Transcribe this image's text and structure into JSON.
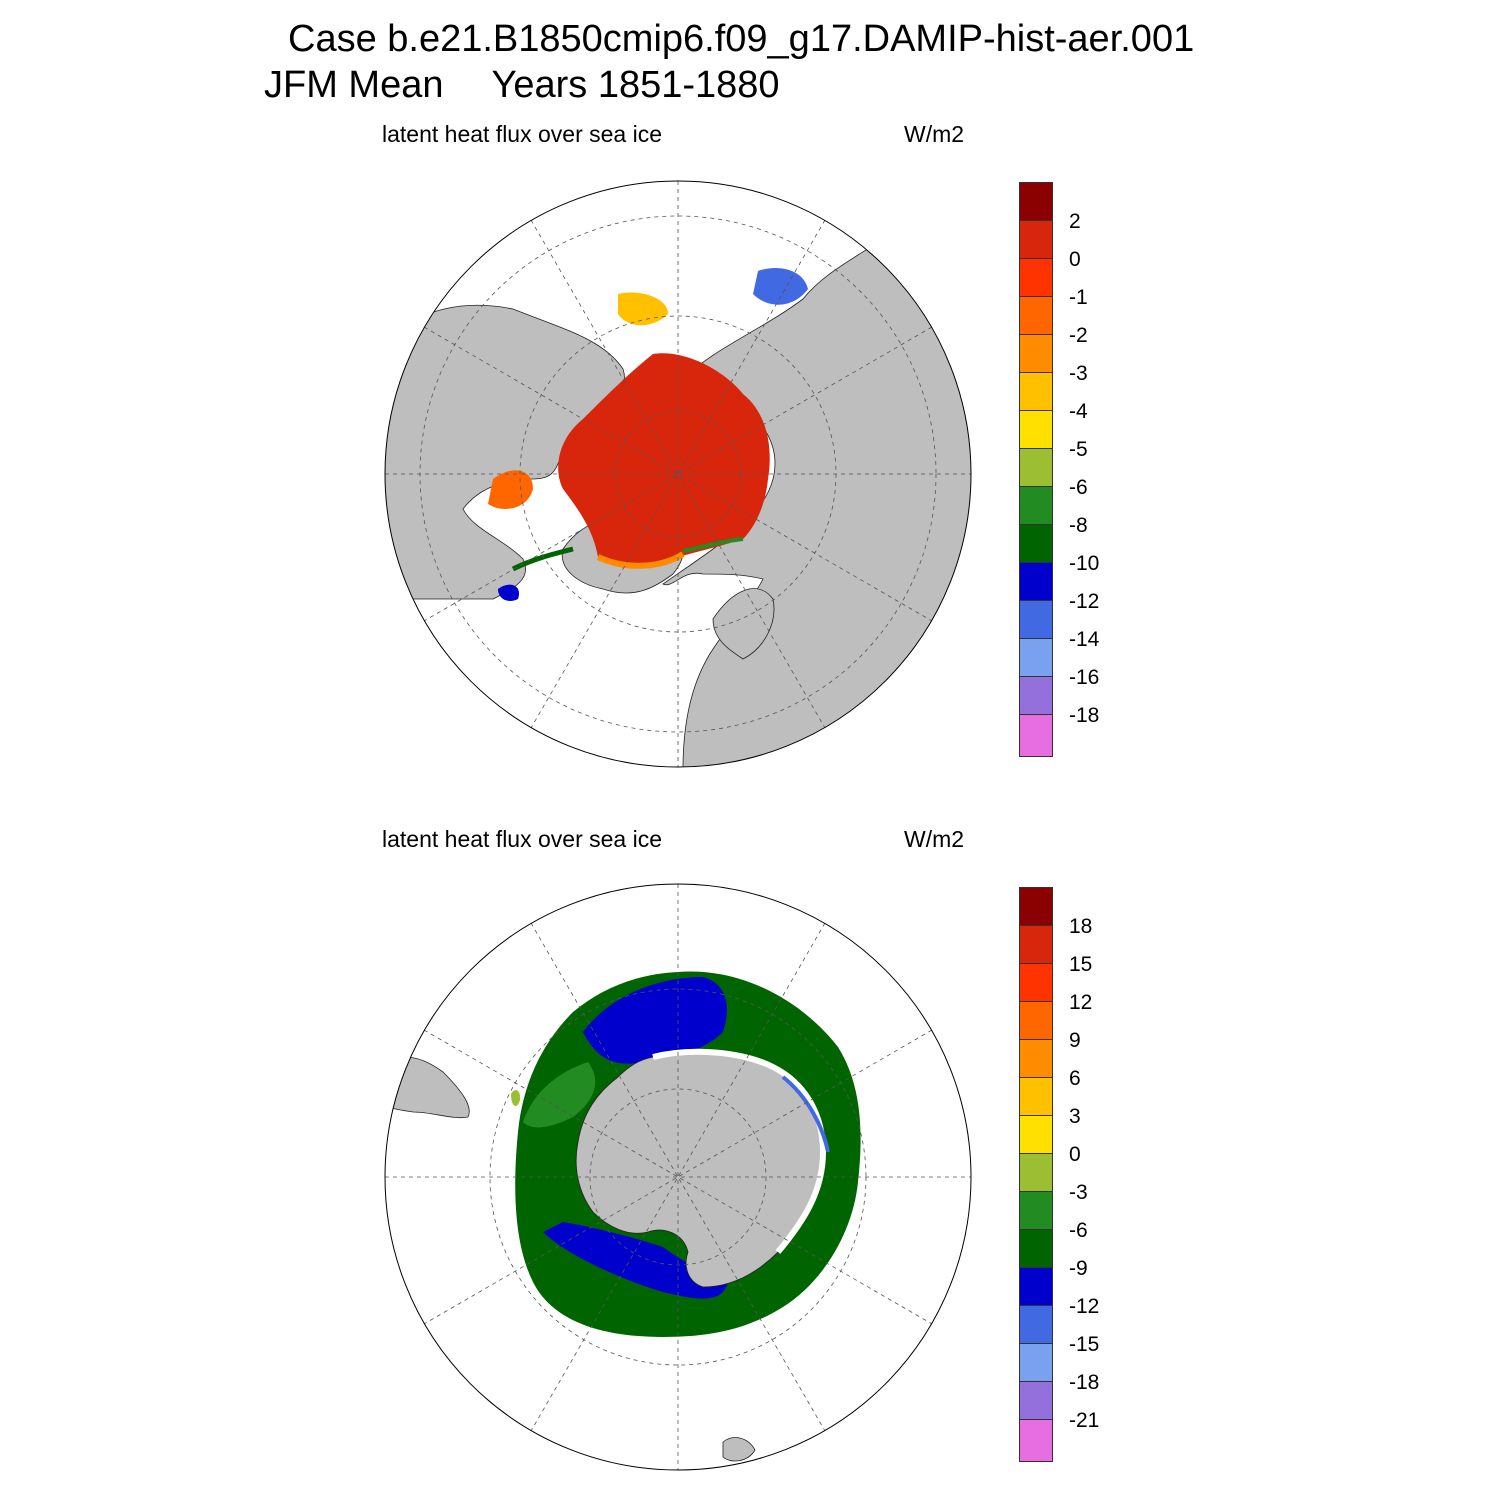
{
  "header": {
    "case_line": "Case b.e21.B1850cmip6.f09_g17.DAMIP-hist-aer.001",
    "season": "JFM Mean",
    "years": "Years 1851-1880"
  },
  "colors": {
    "land": "#bebebe",
    "ocean": "#ffffff",
    "grid": "#555555",
    "palette": [
      "#8b0000",
      "#d8260c",
      "#ff3300",
      "#ff6600",
      "#ff8c00",
      "#ffc000",
      "#ffe000",
      "#9bbe33",
      "#228b22",
      "#006400",
      "#0000cd",
      "#4169e1",
      "#7aa0f0",
      "#9370db",
      "#e66ee0"
    ]
  },
  "north_panel": {
    "title": "latent heat flux over sea ice",
    "units": "W/m2",
    "hemisphere": "Northern Hemisphere polar stereographic",
    "colorbar_labels": [
      "2",
      "0",
      "-1",
      "-2",
      "-3",
      "-4",
      "-5",
      "-6",
      "-8",
      "-10",
      "-12",
      "-14",
      "-16",
      "-18"
    ],
    "dominant_value_range": "0 to 2 over central Arctic ice; -10 to -18 at marginal ice zones"
  },
  "south_panel": {
    "title": "latent heat flux over sea ice",
    "units": "W/m2",
    "hemisphere": "Southern Hemisphere polar stereographic",
    "colorbar_labels": [
      "18",
      "15",
      "12",
      "9",
      "6",
      "3",
      "0",
      "-3",
      "-6",
      "-9",
      "-12",
      "-15",
      "-18",
      "-21"
    ],
    "dominant_value_range": "-3 to -12 around Antarctica"
  }
}
